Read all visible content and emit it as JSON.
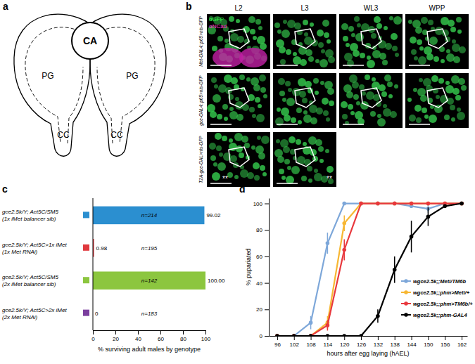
{
  "panels": {
    "a": {
      "label": "a",
      "labels": [
        "CA",
        "PG",
        "PG",
        "CC",
        "CC"
      ]
    },
    "b": {
      "label": "b",
      "columns": [
        "L2",
        "L3",
        "WL3",
        "WPP"
      ],
      "rows": [
        "Met-GAL4::p65>nls-GFP",
        "gce-GAL4::p65>nls-GFP",
        "T2A-gce-GAL>nls-GFP"
      ],
      "stains": [
        "αGFP",
        "αNCad"
      ],
      "marks": [
        "**",
        "**"
      ]
    }
  },
  "chart_data": [
    {
      "label": "c",
      "type": "bar",
      "orientation": "horizontal",
      "categories": [
        "gce2.5k/Y; Act5C/SM5\n(1x iMet balancer sib)",
        "gce2.5k/Y; Act5C>1x iMet\n(1x Met RNAi)",
        "gce2.5k/Y; Act5C/SM5\n(2x iMet balancer sib)",
        "gce2.5k/Y; Act5C>2x iMet\n(2x Met RNAi)"
      ],
      "values": [
        99.02,
        0.98,
        100,
        0
      ],
      "value_labels": [
        "99.02",
        "0.98",
        "100.00",
        "0"
      ],
      "data_labels": true,
      "colors": [
        "#2b8fd0",
        "#e0393e",
        "#8cc63f",
        "#7b3f9e"
      ],
      "annotations": [
        "n=214",
        "n=195",
        "n=142",
        "n=183"
      ],
      "x_label": "% surviving adult males by genotype",
      "xlim": [
        0,
        100
      ],
      "xticks": [
        0,
        20,
        40,
        60,
        80,
        100
      ]
    },
    {
      "label": "d",
      "type": "line",
      "x": [
        96,
        102,
        108,
        114,
        120,
        126,
        132,
        138,
        144,
        150,
        156,
        162
      ],
      "series": [
        {
          "name": "wgce2.5k;;Meti/TM6b",
          "color": "#7da7d9",
          "marker": "circle",
          "values": [
            0,
            0,
            10,
            70,
            100,
            100,
            100,
            100,
            98,
            96,
            100,
            100
          ],
          "errors": [
            null,
            null,
            5,
            8,
            null,
            null,
            null,
            null,
            null,
            3,
            null,
            null
          ]
        },
        {
          "name": "wgce2.5k;;phm>Meti/+",
          "color": "#f7b733",
          "marker": "circle",
          "values": [
            0,
            0,
            0,
            10,
            85,
            100,
            100,
            100,
            100,
            100,
            100,
            100
          ],
          "errors": [
            null,
            null,
            null,
            5,
            6,
            null,
            null,
            null,
            null,
            null,
            null,
            null
          ]
        },
        {
          "name": "wgce2.5k;;phm>TM6b/+",
          "color": "#e8383d",
          "marker": "circle",
          "values": [
            0,
            0,
            0,
            8,
            65,
            100,
            100,
            100,
            100,
            100,
            100,
            100
          ],
          "errors": [
            null,
            null,
            null,
            4,
            8,
            null,
            null,
            null,
            null,
            null,
            null,
            null
          ]
        },
        {
          "name": "wgce2.5k;;phm-GAL4",
          "color": "#000000",
          "marker": "circle",
          "values": [
            0,
            0,
            0,
            0,
            0,
            0,
            15,
            50,
            75,
            90,
            98,
            100
          ],
          "errors": [
            null,
            null,
            null,
            null,
            null,
            null,
            5,
            10,
            12,
            7,
            null,
            null
          ]
        }
      ],
      "legend": "right",
      "x_label": "hours after egg laying (hAEL)",
      "y_label": "% pupariated",
      "xlim": [
        93,
        164
      ],
      "xticks": [
        96,
        102,
        108,
        114,
        120,
        126,
        132,
        138,
        144,
        150,
        156,
        162
      ],
      "ylim": [
        0,
        104
      ],
      "yticks": [
        0,
        20,
        40,
        60,
        80,
        100
      ]
    }
  ]
}
